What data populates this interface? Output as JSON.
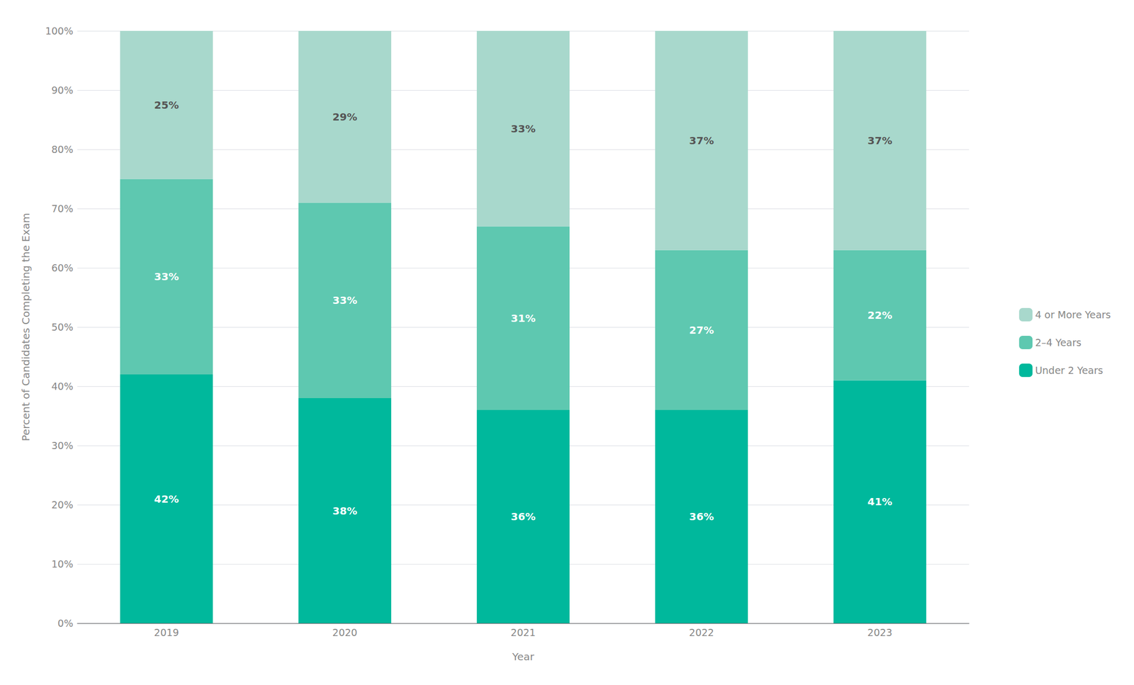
{
  "chart_data": {
    "type": "bar",
    "stacked": true,
    "categories": [
      "2019",
      "2020",
      "2021",
      "2022",
      "2023"
    ],
    "xlabel": "Year",
    "ylabel": "Percent of Candidates Completing the Exam",
    "series": [
      {
        "name": "Under 2 Years",
        "color": "#00B89C",
        "values": [
          42,
          38,
          36,
          36,
          41
        ],
        "value_labels": [
          "42%",
          "38%",
          "36%",
          "36%",
          "41%"
        ]
      },
      {
        "name": "2–4 Years",
        "color": "#5EC8B0",
        "values": [
          33,
          33,
          31,
          27,
          22
        ],
        "value_labels": [
          "33%",
          "33%",
          "31%",
          "27%",
          "22%"
        ]
      },
      {
        "name": "4 or More Years",
        "color": "#A8D8CC",
        "values": [
          25,
          29,
          33,
          37,
          37
        ],
        "value_labels": [
          "25%",
          "29%",
          "33%",
          "37%",
          "37%"
        ]
      }
    ],
    "ylim": [
      0,
      100
    ],
    "yticks": [
      {
        "value": 0,
        "label": "0%"
      },
      {
        "value": 10,
        "label": "10%"
      },
      {
        "value": 20,
        "label": "20%"
      },
      {
        "value": 30,
        "label": "30%"
      },
      {
        "value": 40,
        "label": "40%"
      },
      {
        "value": 50,
        "label": "50%"
      },
      {
        "value": 60,
        "label": "60%"
      },
      {
        "value": 70,
        "label": "70%"
      },
      {
        "value": 80,
        "label": "80%"
      },
      {
        "value": 90,
        "label": "90%"
      },
      {
        "value": 100,
        "label": "100%"
      }
    ],
    "grid": true,
    "legend": "right",
    "data_labels": true
  }
}
